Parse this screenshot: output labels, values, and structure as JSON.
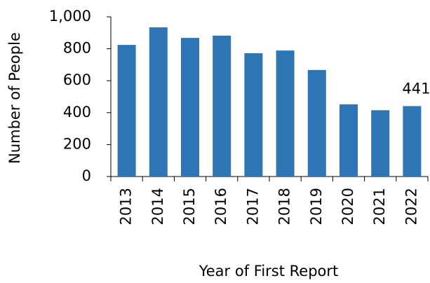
{
  "chart_data": {
    "type": "bar",
    "x_label": "Year of First Report",
    "y_label": "Number of People",
    "categories": [
      "2013",
      "2014",
      "2015",
      "2016",
      "2017",
      "2018",
      "2019",
      "2020",
      "2021",
      "2022"
    ],
    "values": [
      824,
      934,
      868,
      882,
      772,
      789,
      667,
      452,
      415,
      441
    ],
    "value_labels": [
      null,
      null,
      null,
      null,
      null,
      null,
      null,
      null,
      null,
      "441"
    ],
    "color": "#2e75b6",
    "ylim": [
      0,
      1000
    ],
    "yticks": [
      0,
      200,
      400,
      600,
      800,
      {
        "value": 1000,
        "label": "1,000"
      }
    ],
    "grid": false
  }
}
